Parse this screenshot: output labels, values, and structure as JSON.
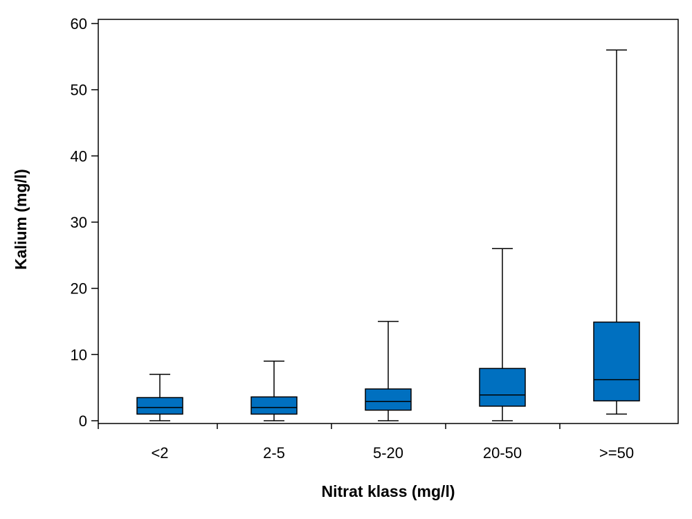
{
  "chart_data": {
    "type": "boxplot",
    "xlabel": "Nitrat klass (mg/l)",
    "ylabel": "Kalium (mg/l)",
    "ylim": [
      0,
      60
    ],
    "yticks": [
      0,
      10,
      20,
      30,
      40,
      50,
      60
    ],
    "grid": false,
    "box_color": "#0070C0",
    "categories": [
      "<2",
      "2-5",
      "5-20",
      "20-50",
      ">=50"
    ],
    "boxes": [
      {
        "category": "<2",
        "min": 0,
        "q1": 1.0,
        "median": 2.0,
        "q3": 3.5,
        "max": 7
      },
      {
        "category": "2-5",
        "min": 0,
        "q1": 1.0,
        "median": 2.0,
        "q3": 3.6,
        "max": 9
      },
      {
        "category": "5-20",
        "min": 0,
        "q1": 1.6,
        "median": 2.9,
        "q3": 4.8,
        "max": 15
      },
      {
        "category": "20-50",
        "min": 0,
        "q1": 2.2,
        "median": 3.9,
        "q3": 7.9,
        "max": 26
      },
      {
        "category": ">=50",
        "min": 1.0,
        "q1": 3.0,
        "median": 6.2,
        "q3": 14.9,
        "max": 56
      }
    ]
  }
}
